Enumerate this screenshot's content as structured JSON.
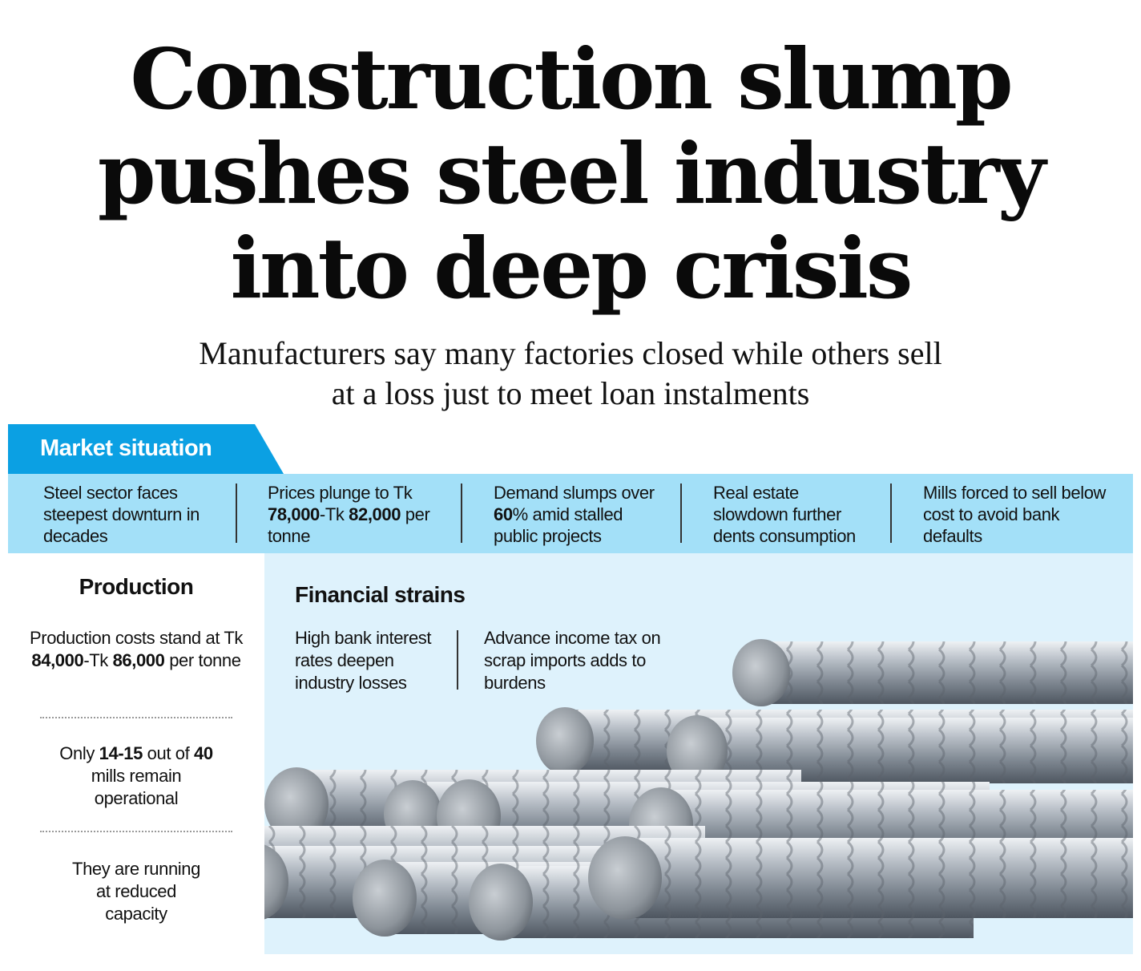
{
  "headline": {
    "line1": "Construction slump",
    "line2": "pushes steel industry",
    "line3": "into deep crisis"
  },
  "subhead": {
    "line1": "Manufacturers say many factories closed while others sell",
    "line2": "at a loss just to meet loan instalments"
  },
  "market": {
    "label": "Market situation",
    "items": [
      {
        "pre": "Steel sector faces steepest downturn in decades",
        "bold1": "",
        "mid": "",
        "bold2": "",
        "post": ""
      },
      {
        "pre": "Prices plunge to Tk ",
        "bold1": "78,000",
        "mid": "-Tk ",
        "bold2": "82,000",
        "post": " per tonne"
      },
      {
        "pre": "Demand slumps over ",
        "bold1": "60",
        "mid": "% amid stalled public projects",
        "bold2": "",
        "post": ""
      },
      {
        "pre": "Real estate slowdown further dents consumption",
        "bold1": "",
        "mid": "",
        "bold2": "",
        "post": ""
      },
      {
        "pre": "Mills forced to sell below cost to avoid bank defaults",
        "bold1": "",
        "mid": "",
        "bold2": "",
        "post": ""
      }
    ]
  },
  "production": {
    "title": "Production",
    "item1": {
      "pre": "Production costs stand at Tk ",
      "bold1": "84,000",
      "mid": "-Tk ",
      "bold2": "86,000",
      "post": " per tonne"
    },
    "item2": {
      "pre": "Only ",
      "bold1": "14-15",
      "mid": " out of ",
      "bold2": "40",
      "post": " mills remain operational"
    },
    "item3": "They are running at reduced capacity"
  },
  "financial": {
    "title": "Financial strains",
    "item1": "High bank interest rates deepen industry losses",
    "item2": "Advance income tax on scrap imports adds to burdens"
  },
  "colors": {
    "tab": "#0ba0e3",
    "band": "#a3e0f8",
    "panel": "#def2fc",
    "steel": "#9aa3ad"
  }
}
